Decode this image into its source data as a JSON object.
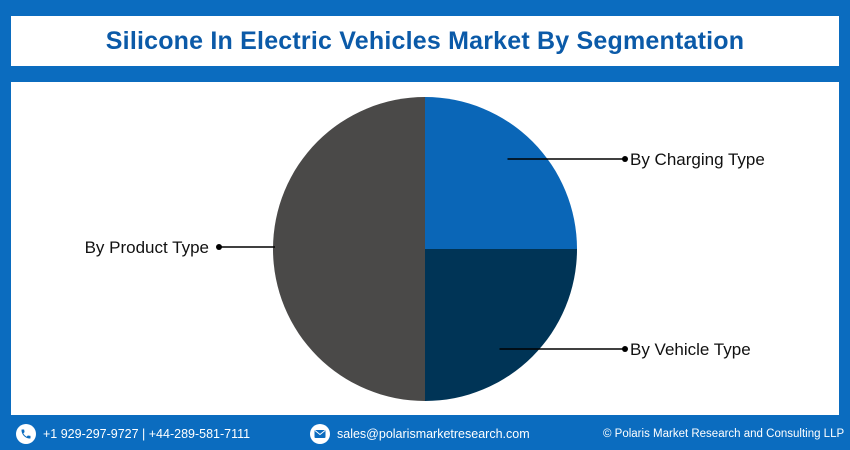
{
  "header": {
    "title": "Silicone In Electric Vehicles Market By Segmentation"
  },
  "chart_data": {
    "type": "pie",
    "title": "Silicone In Electric Vehicles Market By Segmentation",
    "slices": [
      {
        "label": "By Charging Type",
        "value": 25,
        "color": "#0a66b7"
      },
      {
        "label": "By Vehicle Type",
        "value": 25,
        "color": "#003456"
      },
      {
        "label": "By Product Type",
        "value": 50,
        "color": "#4a4948"
      }
    ]
  },
  "footer": {
    "phone": "+1 929-297-9727 | +44-289-581-7111",
    "email": "sales@polarismarketresearch.com",
    "copyright": "© Polaris Market Research and Consulting LLP",
    "phone_icon": "phone-icon",
    "email_icon": "mail-icon"
  }
}
